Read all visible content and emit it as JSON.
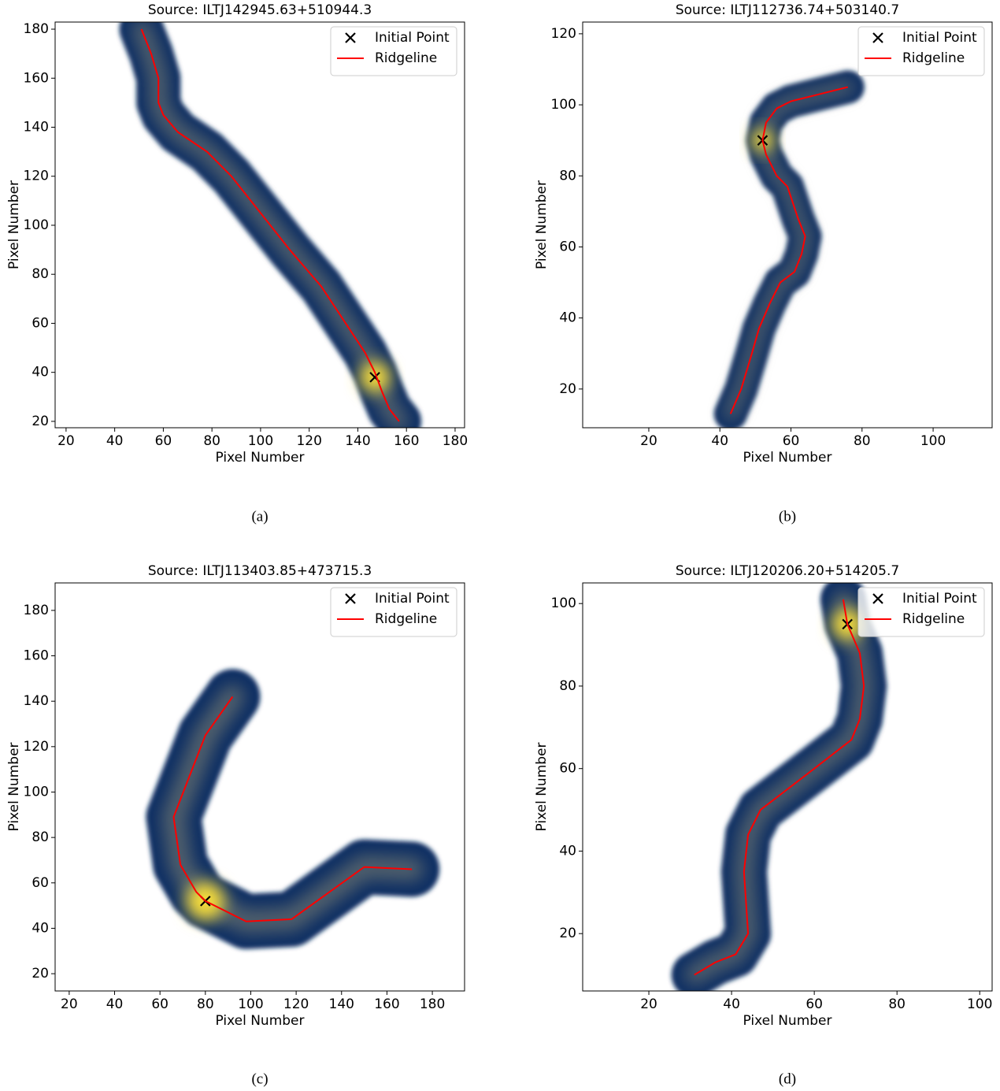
{
  "chart_data": [
    {
      "type": "line",
      "title": "Source: ILTJ142945.63+510944.3",
      "xlabel": "Pixel Number",
      "ylabel": "Pixel Number",
      "caption": "(a)",
      "xlim": [
        15.5,
        183.9
      ],
      "ylim": [
        17.4,
        182.9
      ],
      "xticks": [
        20,
        40,
        60,
        80,
        100,
        120,
        140,
        160,
        180
      ],
      "yticks": [
        20,
        40,
        60,
        80,
        100,
        120,
        140,
        160,
        180
      ],
      "legend": "upper right",
      "series": [
        {
          "name": "Initial Point",
          "type": "scatter",
          "color": "#000000",
          "x": [
            147
          ],
          "values": [
            38
          ]
        },
        {
          "name": "Ridgeline",
          "type": "line",
          "color": "#ff0000",
          "x": [
            51,
            55,
            58,
            58,
            60,
            66,
            78,
            88,
            100,
            112,
            125,
            135,
            143,
            147,
            150,
            153,
            157
          ],
          "values": [
            180,
            170,
            160,
            150,
            145,
            138,
            130,
            120,
            105,
            90,
            75,
            60,
            48,
            40,
            32,
            25,
            20
          ]
        }
      ]
    },
    {
      "type": "line",
      "title": "Source: ILTJ112736.74+503140.7",
      "xlabel": "Pixel Number",
      "ylabel": "Pixel Number",
      "caption": "(b)",
      "xlim": [
        1.4,
        116.6
      ],
      "ylim": [
        9.1,
        123.3
      ],
      "xticks": [
        20,
        40,
        60,
        80,
        100
      ],
      "yticks": [
        20,
        40,
        60,
        80,
        100,
        120
      ],
      "legend": "upper right",
      "series": [
        {
          "name": "Initial Point",
          "type": "scatter",
          "color": "#000000",
          "x": [
            52
          ],
          "values": [
            90
          ]
        },
        {
          "name": "Ridgeline",
          "type": "line",
          "color": "#ff0000",
          "x": [
            43,
            46,
            49,
            51,
            54,
            57,
            61,
            63,
            64,
            62,
            59,
            56,
            53,
            52,
            53,
            56,
            60,
            68,
            76
          ],
          "values": [
            13,
            20,
            30,
            37,
            44,
            50,
            53,
            58,
            63,
            68,
            77,
            80,
            86,
            90,
            95,
            99,
            101,
            103,
            105
          ]
        }
      ]
    },
    {
      "type": "line",
      "title": "Source: ILTJ113403.85+473715.3",
      "xlabel": "Pixel Number",
      "ylabel": "Pixel Number",
      "caption": "(c)",
      "xlim": [
        13.8,
        194.2
      ],
      "ylim": [
        12.4,
        192.1
      ],
      "xticks": [
        20,
        40,
        60,
        80,
        100,
        120,
        140,
        160,
        180
      ],
      "yticks": [
        20,
        40,
        60,
        80,
        100,
        120,
        140,
        160,
        180
      ],
      "legend": "upper right",
      "series": [
        {
          "name": "Initial Point",
          "type": "scatter",
          "color": "#000000",
          "x": [
            80
          ],
          "values": [
            52
          ]
        },
        {
          "name": "Ridgeline",
          "type": "line",
          "color": "#ff0000",
          "x": [
            92,
            80,
            66,
            69,
            76,
            80,
            98,
            118,
            150,
            171
          ],
          "values": [
            142,
            125,
            89,
            68,
            56,
            52,
            43,
            44,
            67,
            66
          ]
        }
      ]
    },
    {
      "type": "line",
      "title": "Source: ILTJ120206.20+514205.7",
      "xlabel": "Pixel Number",
      "ylabel": "Pixel Number",
      "caption": "(d)",
      "xlim": [
        4,
        103
      ],
      "ylim": [
        6.1,
        105
      ],
      "xticks": [
        20,
        40,
        60,
        80,
        100
      ],
      "yticks": [
        20,
        40,
        60,
        80,
        100
      ],
      "legend": "upper right",
      "series": [
        {
          "name": "Initial Point",
          "type": "scatter",
          "color": "#000000",
          "x": [
            68
          ],
          "values": [
            95
          ]
        },
        {
          "name": "Ridgeline",
          "type": "line",
          "color": "#ff0000",
          "x": [
            67,
            68,
            71,
            72,
            71,
            69,
            60,
            47,
            44,
            43,
            44,
            41,
            36,
            31
          ],
          "values": [
            101,
            95,
            88,
            80,
            72,
            67,
            60,
            50,
            44,
            35,
            20,
            15,
            13,
            10
          ]
        }
      ]
    }
  ]
}
